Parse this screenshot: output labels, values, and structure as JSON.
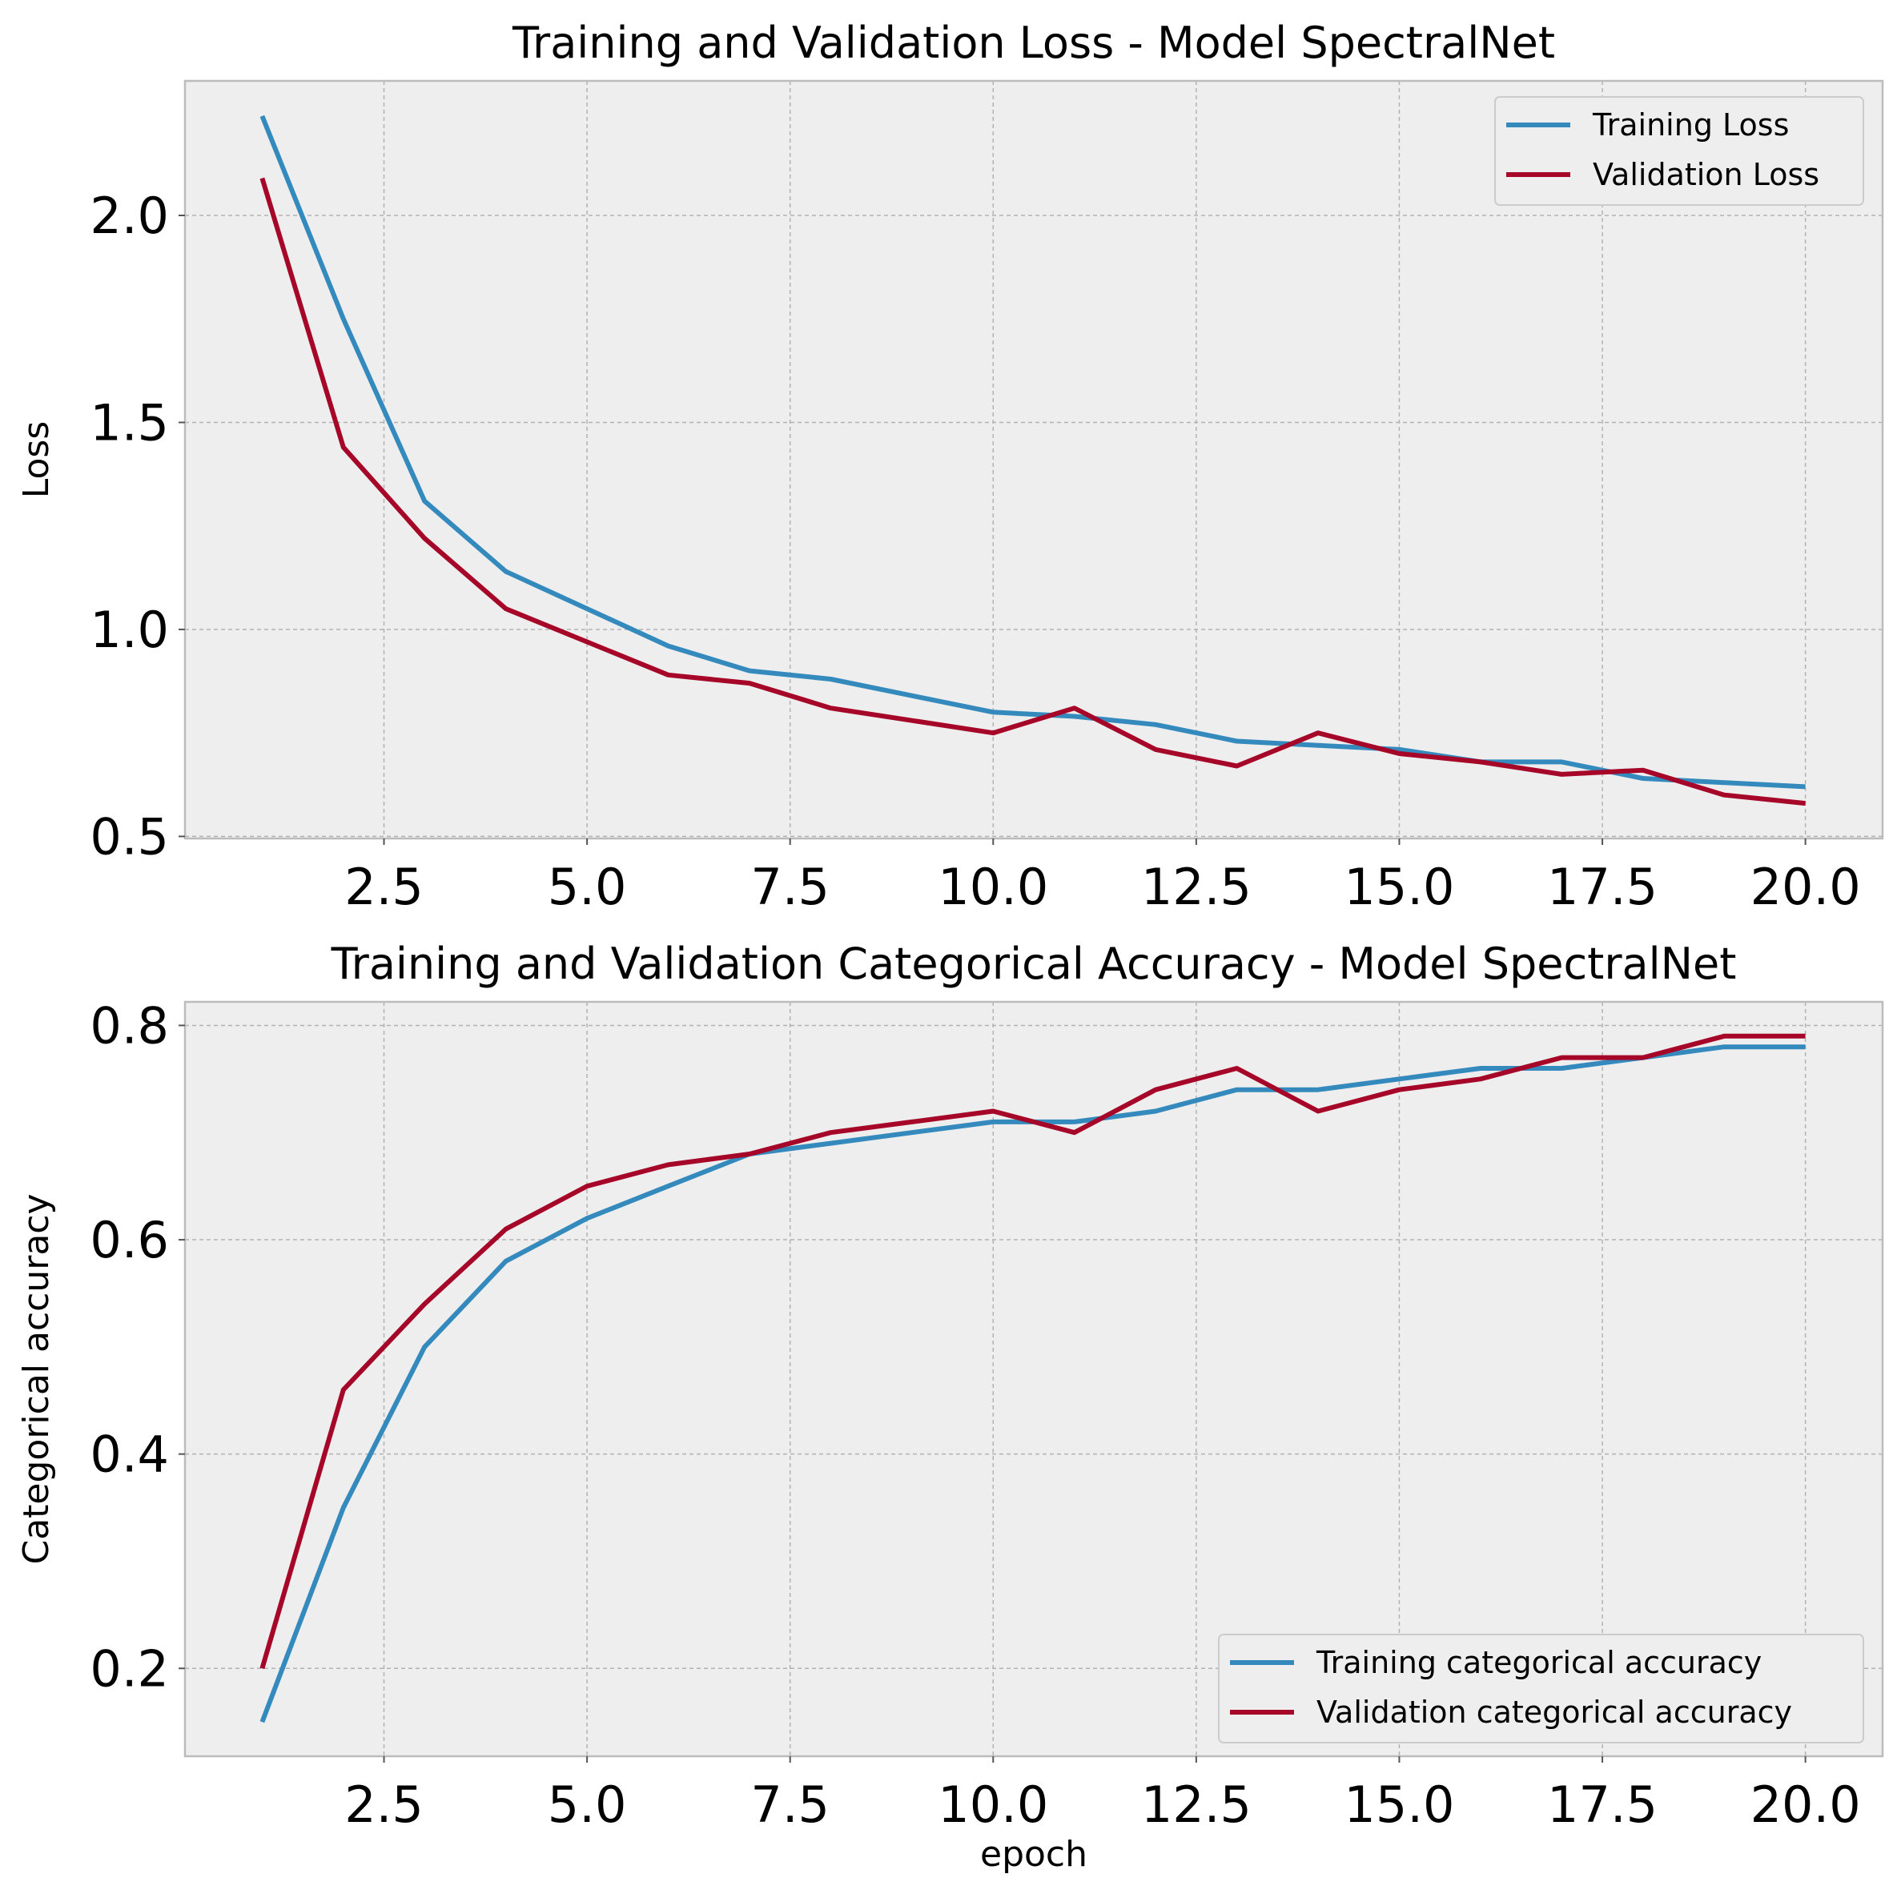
{
  "chart_data": [
    {
      "type": "line",
      "title": "Training and Validation Loss - Model SpectralNet",
      "xlabel": "",
      "ylabel": "Loss",
      "x": [
        1,
        2,
        3,
        4,
        5,
        6,
        7,
        8,
        9,
        10,
        11,
        12,
        13,
        14,
        15,
        16,
        17,
        18,
        19,
        20
      ],
      "xlim": [
        0.05,
        20.95
      ],
      "ylim": [
        0.495,
        2.325
      ],
      "xticks": [
        2.5,
        5.0,
        7.5,
        10.0,
        12.5,
        15.0,
        17.5,
        20.0
      ],
      "xtick_labels": [
        "2.5",
        "5.0",
        "7.5",
        "10.0",
        "12.5",
        "15.0",
        "17.5",
        "20.0"
      ],
      "yticks": [
        0.5,
        1.0,
        1.5,
        2.0
      ],
      "ytick_labels": [
        "0.5",
        "1.0",
        "1.5",
        "2.0"
      ],
      "grid": true,
      "legend_position": "upper right",
      "series": [
        {
          "name": "Training Loss",
          "color": "#348abd",
          "values": [
            2.24,
            1.75,
            1.31,
            1.14,
            1.05,
            0.96,
            0.9,
            0.88,
            0.84,
            0.8,
            0.79,
            0.77,
            0.73,
            0.72,
            0.71,
            0.68,
            0.68,
            0.64,
            0.63,
            0.62
          ]
        },
        {
          "name": "Validation Loss",
          "color": "#a60628",
          "values": [
            2.09,
            1.44,
            1.22,
            1.05,
            0.97,
            0.89,
            0.87,
            0.81,
            0.78,
            0.75,
            0.81,
            0.71,
            0.67,
            0.75,
            0.7,
            0.68,
            0.65,
            0.66,
            0.6,
            0.58
          ]
        }
      ]
    },
    {
      "type": "line",
      "title": "Training and Validation Categorical Accuracy - Model SpectralNet",
      "xlabel": "epoch",
      "ylabel": "Categorical accuracy",
      "x": [
        1,
        2,
        3,
        4,
        5,
        6,
        7,
        8,
        9,
        10,
        11,
        12,
        13,
        14,
        15,
        16,
        17,
        18,
        19,
        20
      ],
      "xlim": [
        0.05,
        20.95
      ],
      "ylim": [
        0.118,
        0.822
      ],
      "xticks": [
        2.5,
        5.0,
        7.5,
        10.0,
        12.5,
        15.0,
        17.5,
        20.0
      ],
      "xtick_labels": [
        "2.5",
        "5.0",
        "7.5",
        "10.0",
        "12.5",
        "15.0",
        "17.5",
        "20.0"
      ],
      "yticks": [
        0.2,
        0.4,
        0.6,
        0.8
      ],
      "ytick_labels": [
        "0.2",
        "0.4",
        "0.6",
        "0.8"
      ],
      "grid": true,
      "legend_position": "lower right",
      "series": [
        {
          "name": "Training categorical accuracy",
          "color": "#348abd",
          "values": [
            0.15,
            0.35,
            0.5,
            0.58,
            0.62,
            0.65,
            0.68,
            0.69,
            0.7,
            0.71,
            0.71,
            0.72,
            0.74,
            0.74,
            0.75,
            0.76,
            0.76,
            0.77,
            0.78,
            0.78
          ]
        },
        {
          "name": "Validation categorical accuracy",
          "color": "#a60628",
          "values": [
            0.2,
            0.46,
            0.54,
            0.61,
            0.65,
            0.67,
            0.68,
            0.7,
            0.71,
            0.72,
            0.7,
            0.74,
            0.76,
            0.72,
            0.74,
            0.75,
            0.77,
            0.77,
            0.79,
            0.79
          ]
        }
      ]
    }
  ]
}
